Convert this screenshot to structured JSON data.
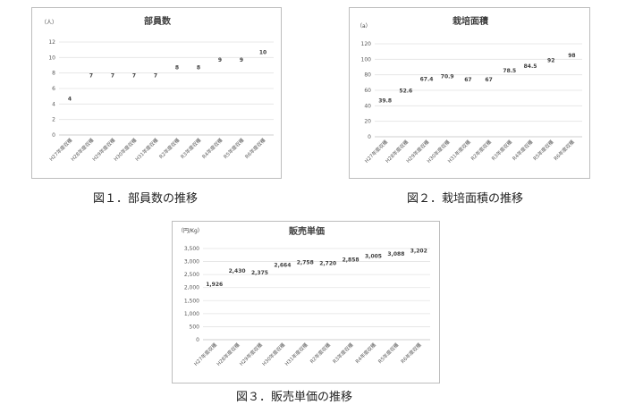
{
  "figures": [
    {
      "caption": "図１．部員数の推移",
      "chart_data": {
        "type": "bar",
        "title": "部員数",
        "unit": "（人）",
        "color": "#ED7D31",
        "categories": [
          "H27年度収穫",
          "H28年度収穫",
          "H29年度収穫",
          "H30年度収穫",
          "H31年度収穫",
          "R2年度収穫",
          "R3年度収穫",
          "R4年度収穫",
          "R5年度収穫",
          "R6年度収穫"
        ],
        "values": [
          4,
          7,
          7,
          7,
          7,
          8,
          8,
          9,
          9,
          10
        ],
        "data_labels": [
          "4",
          "7",
          "7",
          "7",
          "7",
          "8",
          "8",
          "9",
          "9",
          "10"
        ],
        "yticks": [
          0,
          2,
          4,
          6,
          8,
          10,
          12
        ],
        "ytick_labels": [
          "0",
          "2",
          "4",
          "6",
          "8",
          "10",
          "12"
        ],
        "ylim": [
          0,
          12
        ],
        "grid": true,
        "legend": "none"
      }
    },
    {
      "caption": "図２．栽培面積の推移",
      "chart_data": {
        "type": "bar",
        "title": "栽培面積",
        "unit": "（a）",
        "color": "#ED7D31",
        "categories": [
          "H27年度収穫",
          "H28年度収穫",
          "H29年度収穫",
          "H30年度収穫",
          "H31年度収穫",
          "R2年度収穫",
          "R3年度収穫",
          "R4年度収穫",
          "R5年度収穫",
          "R6年度収穫"
        ],
        "values": [
          39.8,
          52.6,
          67.4,
          70.9,
          67,
          67,
          78.5,
          84.5,
          92,
          98
        ],
        "data_labels": [
          "39.8",
          "52.6",
          "67.4",
          "70.9",
          "67",
          "67",
          "78.5",
          "84.5",
          "92",
          "98"
        ],
        "yticks": [
          0,
          20,
          40,
          60,
          80,
          100,
          120
        ],
        "ytick_labels": [
          "0",
          "20",
          "40",
          "60",
          "80",
          "100",
          "120"
        ],
        "ylim": [
          0,
          120
        ],
        "grid": true,
        "legend": "none"
      }
    },
    {
      "caption": "図３．販売単価の推移",
      "chart_data": {
        "type": "bar",
        "title": "販売単価",
        "unit": "（円/Kg）",
        "color": "#5B9BD5",
        "categories": [
          "H27年度収穫",
          "H28年度収穫",
          "H29年度収穫",
          "H30年度収穫",
          "H31年度収穫",
          "R2年度収穫",
          "R3年度収穫",
          "R4年度収穫",
          "R5年度収穫",
          "R6年度収穫"
        ],
        "values": [
          1926,
          2430,
          2375,
          2664,
          2758,
          2720,
          2858,
          3005,
          3088,
          3202
        ],
        "data_labels": [
          "1,926",
          "2,430",
          "2,375",
          "2,664",
          "2,758",
          "2,720",
          "2,858",
          "3,005",
          "3,088",
          "3,202"
        ],
        "yticks": [
          0,
          500,
          1000,
          1500,
          2000,
          2500,
          3000,
          3500
        ],
        "ytick_labels": [
          "0",
          "500",
          "1,000",
          "1,500",
          "2,000",
          "2,500",
          "3,000",
          "3,500"
        ],
        "ylim": [
          0,
          3500
        ],
        "grid": true,
        "legend": "none"
      }
    }
  ]
}
